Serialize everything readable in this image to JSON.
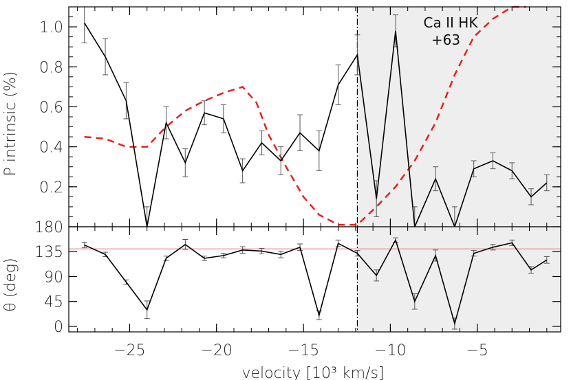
{
  "chart_data": [
    {
      "type": "line",
      "panel": "top",
      "ylabel": "P intrinsic (%)",
      "xlim": [
        -28.5,
        -0.2
      ],
      "ylim": [
        0.0,
        1.1
      ],
      "x_ticks": [
        -25,
        -20,
        -15,
        -10,
        -5
      ],
      "y_ticks": [
        0.2,
        0.4,
        0.6,
        0.8,
        1.0
      ],
      "y_tick_labels": [
        "0.2",
        "0.4",
        "0.6",
        "0.8",
        "1.0"
      ],
      "shaded_region": [
        -11.9,
        -0.2
      ],
      "vertical_line_x": -11.9,
      "annotation": [
        "Ca II HK",
        "+63"
      ],
      "series": [
        {
          "name": "",
          "style": "solid-black-with-errorbars",
          "color": "#000000",
          "x": [
            -27.6,
            -26.4,
            -25.2,
            -24.0,
            -22.9,
            -21.8,
            -20.7,
            -19.6,
            -18.5,
            -17.4,
            -16.3,
            -15.2,
            -14.1,
            -13.0,
            -11.9,
            -10.8,
            -9.7,
            -8.6,
            -7.4,
            -6.3,
            -5.2,
            -4.1,
            -3.0,
            -1.9,
            -1.0
          ],
          "values": [
            1.02,
            0.85,
            0.63,
            0.0,
            0.52,
            0.32,
            0.57,
            0.54,
            0.28,
            0.42,
            0.33,
            0.47,
            0.38,
            0.71,
            0.86,
            0.14,
            0.98,
            0.0,
            0.24,
            0.0,
            0.29,
            0.33,
            0.28,
            0.15,
            0.22
          ],
          "errors": [
            0.1,
            0.09,
            0.09,
            0.1,
            0.08,
            0.07,
            0.06,
            0.07,
            0.06,
            0.06,
            0.07,
            0.09,
            0.1,
            0.1,
            0.1,
            0.09,
            0.08,
            0.1,
            0.06,
            0.1,
            0.04,
            0.04,
            0.04,
            0.04,
            0.04
          ]
        },
        {
          "name": "",
          "style": "dashed",
          "color": "#e8201a",
          "x": [
            -27.6,
            -26.4,
            -25.2,
            -24.0,
            -22.9,
            -21.8,
            -20.7,
            -19.6,
            -18.5,
            -17.7,
            -17.0,
            -16.0,
            -15.0,
            -14.1,
            -13.0,
            -11.9,
            -10.8,
            -9.7,
            -8.6,
            -7.4,
            -6.3,
            -5.2,
            -4.1,
            -3.0,
            -2.2
          ],
          "values": [
            0.45,
            0.44,
            0.4,
            0.4,
            0.5,
            0.58,
            0.63,
            0.67,
            0.7,
            0.62,
            0.46,
            0.3,
            0.15,
            0.06,
            0.01,
            0.01,
            0.1,
            0.2,
            0.33,
            0.52,
            0.76,
            0.95,
            1.04,
            1.1,
            1.13
          ]
        }
      ]
    },
    {
      "type": "line",
      "panel": "bottom",
      "ylabel": "θ (deg)",
      "xlabel": "velocity [10³ km/s]",
      "xlim": [
        -28.5,
        -0.2
      ],
      "ylim": [
        -10,
        180
      ],
      "x_ticks": [
        -25,
        -20,
        -15,
        -10,
        -5
      ],
      "x_tick_labels": [
        "−25",
        "−20",
        "−15",
        "−10",
        "−5"
      ],
      "y_ticks": [
        0,
        45,
        90,
        135,
        180
      ],
      "y_tick_labels": [
        "0",
        "45",
        "90",
        "135",
        "180"
      ],
      "shaded_region": [
        -11.9,
        -0.2
      ],
      "vertical_line_x": -11.9,
      "reference_line": 140,
      "series": [
        {
          "name": "",
          "style": "solid-black-with-errorbars",
          "color": "#000000",
          "x": [
            -27.6,
            -26.4,
            -25.2,
            -24.0,
            -22.9,
            -21.8,
            -20.7,
            -19.6,
            -18.5,
            -17.4,
            -16.3,
            -15.2,
            -14.1,
            -13.0,
            -11.9,
            -10.8,
            -9.7,
            -8.6,
            -7.4,
            -6.3,
            -5.2,
            -4.1,
            -3.0,
            -1.9,
            -1.0
          ],
          "values": [
            147,
            130,
            80,
            30,
            123,
            148,
            123,
            128,
            138,
            136,
            130,
            143,
            20,
            150,
            132,
            92,
            156,
            45,
            128,
            5,
            132,
            143,
            151,
            102,
            120
          ],
          "errors": [
            5,
            4,
            4,
            16,
            4,
            9,
            4,
            4,
            6,
            5,
            6,
            6,
            8,
            6,
            5,
            10,
            4,
            14,
            10,
            10,
            5,
            5,
            5,
            6,
            6
          ]
        }
      ],
      "reference_color": "#f08080"
    }
  ]
}
